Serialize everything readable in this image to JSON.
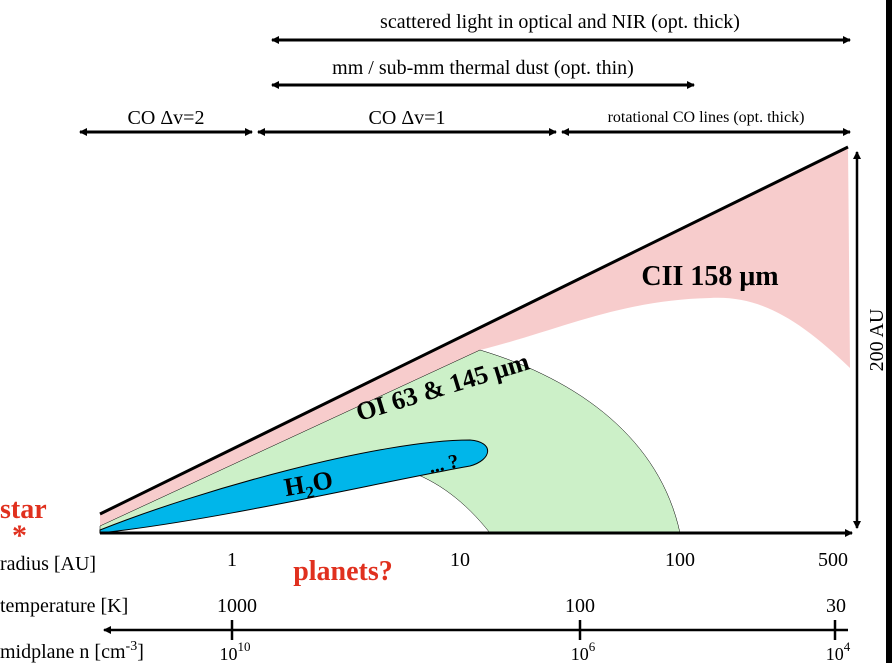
{
  "ranges": [
    {
      "label": "scattered light in optical and NIR (opt. thick)"
    },
    {
      "label": "mm / sub-mm thermal dust (opt. thin)"
    },
    {
      "label": "CO Δv=2"
    },
    {
      "label": "CO Δv=1"
    },
    {
      "label": "rotational CO lines (opt. thick)"
    }
  ],
  "regions": {
    "cii": "CII 158 μm",
    "oi": "OI 63 & 145 μm",
    "h2o": {
      "base": "H",
      "sub": "2",
      "end": "O"
    },
    "unknown": "... ?"
  },
  "star": {
    "label": "star",
    "symbol": "*"
  },
  "planets": "planets?",
  "height": "200 AU",
  "axes": {
    "radius": {
      "label": "radius [AU]",
      "ticks": [
        "1",
        "10",
        "100",
        "500"
      ]
    },
    "temperature": {
      "label": "temperature [K]",
      "ticks": [
        "1000",
        "100",
        "30"
      ]
    },
    "density": {
      "label": {
        "text": "midplane n [cm",
        "sup": "-3",
        "end": "]"
      },
      "ticks": [
        {
          "base": "10",
          "exp": "10"
        },
        {
          "base": "10",
          "exp": "6"
        },
        {
          "base": "10",
          "exp": "4"
        }
      ]
    }
  }
}
